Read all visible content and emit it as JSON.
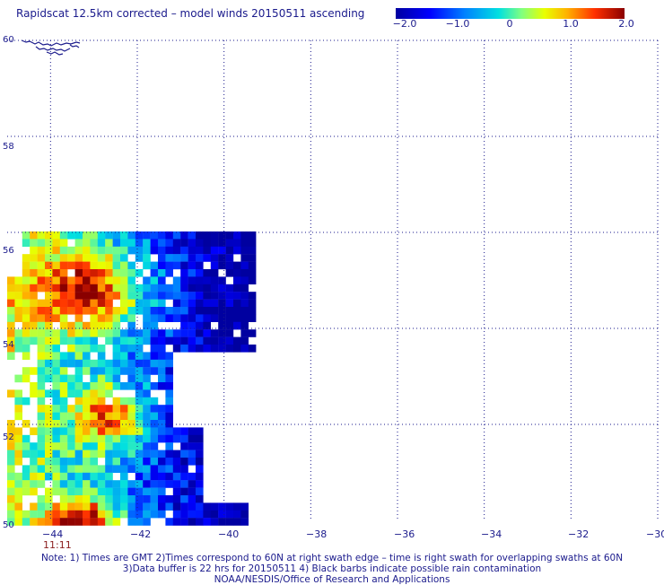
{
  "title": "Rapidscat 12.5km corrected – model winds 20150511 ascending",
  "colorbar": {
    "ticks": [
      "−2.0",
      "−1.0",
      "0",
      "1.0",
      "2.0"
    ],
    "range": [
      -2.0,
      2.0
    ]
  },
  "map": {
    "lon_range": [
      -45,
      -30
    ],
    "lat_range": [
      50,
      60
    ],
    "x_ticks": [
      "−44",
      "−42",
      "−40",
      "−38",
      "−36",
      "−34",
      "−32",
      "−30"
    ],
    "y_ticks": [
      "60",
      "58",
      "56",
      "54",
      "52",
      "50"
    ],
    "time_label": "11:11",
    "grid": true
  },
  "notes": [
    "Note: 1) Times are GMT 2)Times correspond to 60N at right swath edge – time is right swath for overlapping swaths at 60N",
    "3)Data buffer is 22 hrs for 20150511 4) Black barbs indicate possible rain contamination",
    "NOAA/NESDIS/Office of Research and Applications"
  ],
  "colors": {
    "text": "#1a1a8c",
    "grid": "#1a1a8c",
    "coast": "#1a1a8c",
    "time": "#8a1d1d"
  }
}
